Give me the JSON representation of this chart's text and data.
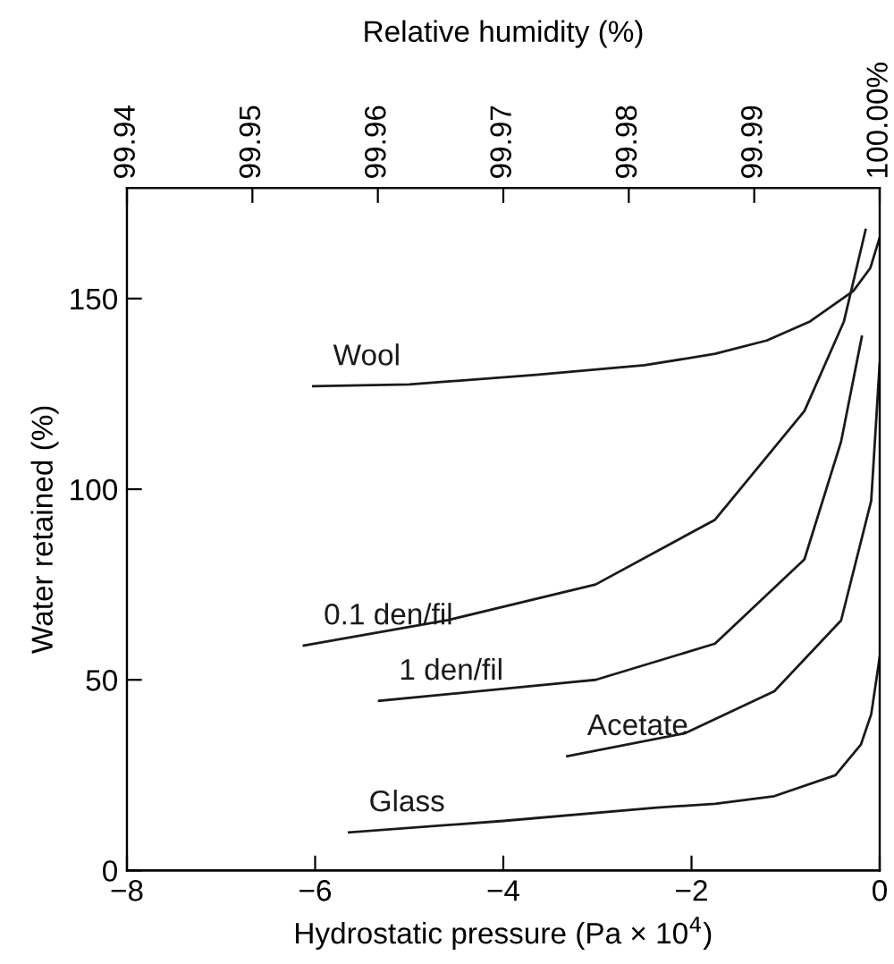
{
  "chart_data": {
    "type": "line",
    "xlabel": "Hydrostatic pressure (Pa × 10$^{4}$)",
    "ylabel": "Water retained (%)",
    "x2label": "Relative humidity (%)",
    "xlim": [
      -8,
      0
    ],
    "xticks": [
      {
        "value": -8,
        "label": "−8"
      },
      {
        "value": -6,
        "label": "−6"
      },
      {
        "value": -4,
        "label": "−4"
      },
      {
        "value": -2,
        "label": "−2"
      },
      0
    ],
    "ylim": [
      0,
      179
    ],
    "yticks": [
      0,
      50,
      100,
      150
    ],
    "x2lim": [
      99.94,
      100.0
    ],
    "x2ticks": [
      99.94,
      99.95,
      99.96,
      99.97,
      99.98,
      99.99,
      {
        "value": 100.0,
        "label": "100.00%"
      }
    ],
    "grid": false,
    "legend": false,
    "marker": "none",
    "line_style": "solid",
    "series": [
      {
        "name": "Wool",
        "color": "#1a1a1a",
        "x": [
          -6.02,
          -5,
          -3.65,
          -2.5,
          -1.75,
          -1.2,
          -0.74,
          -0.28,
          -0.1,
          0
        ],
        "values": [
          127,
          127.5,
          130,
          132.5,
          135.5,
          139,
          144,
          152,
          158,
          166
        ]
      },
      {
        "name": "0.1 den/fil",
        "color": "#1a1a1a",
        "x": [
          -6.12,
          -4.6,
          -3.02,
          -1.75,
          -0.8,
          -0.38,
          -0.15
        ],
        "values": [
          59,
          65.6,
          75,
          92,
          120.5,
          144,
          168
        ]
      },
      {
        "name": "1 den/fil",
        "color": "#1a1a1a",
        "x": [
          -5.32,
          -3.02,
          -1.75,
          -0.8,
          -0.41,
          -0.19
        ],
        "values": [
          44.5,
          50,
          59.5,
          81.6,
          112.5,
          140
        ]
      },
      {
        "name": "Acetate",
        "color": "#1a1a1a",
        "x": [
          -3.32,
          -2.07,
          -1.12,
          -0.41,
          -0.09,
          0
        ],
        "values": [
          30,
          36,
          47,
          65.6,
          97,
          133
        ]
      },
      {
        "name": "Glass",
        "color": "#1a1a1a",
        "x": [
          -5.64,
          -4,
          -2.37,
          -1.75,
          -1.12,
          -0.47,
          -0.2,
          -0.09,
          0
        ],
        "values": [
          10,
          13,
          16.5,
          17.5,
          19.5,
          25,
          33,
          41,
          56
        ]
      }
    ]
  }
}
